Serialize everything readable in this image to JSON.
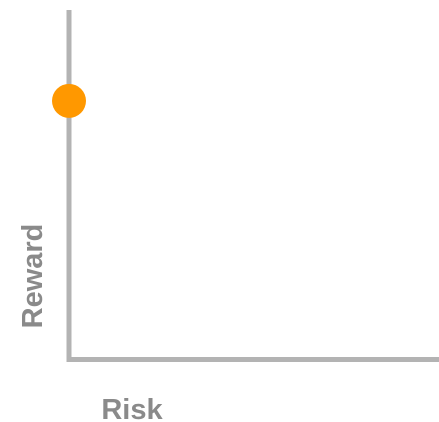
{
  "chart_data": {
    "type": "scatter",
    "xlabel": "Risk",
    "ylabel": "Reward",
    "xlim": [
      0,
      10
    ],
    "ylim": [
      0,
      10
    ],
    "grid": false,
    "ticks": false,
    "series": [
      {
        "points": [
          {
            "x": 0,
            "y": 7.4
          }
        ],
        "color": "#ff9800"
      }
    ]
  },
  "colors": {
    "axis": "#b3b3b3",
    "label": "#8a8a8a",
    "point": "#ff9800"
  }
}
